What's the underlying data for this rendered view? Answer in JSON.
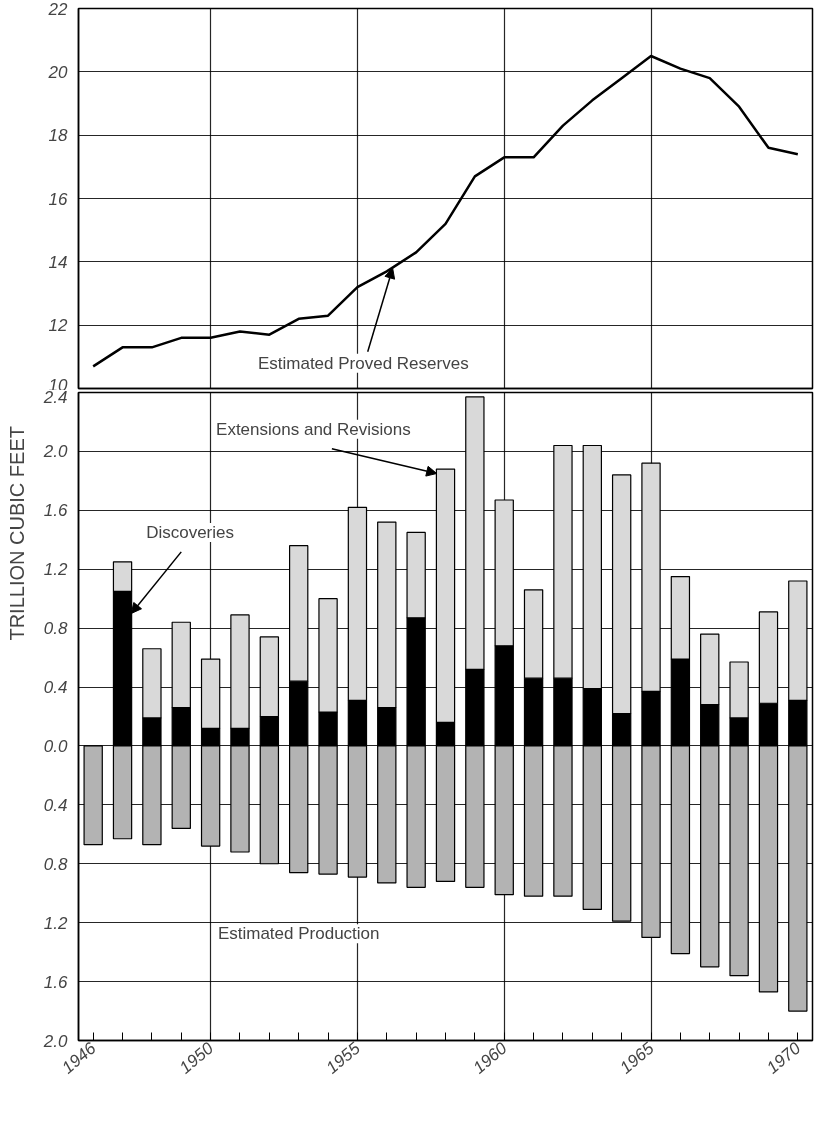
{
  "chart_data": [
    {
      "type": "line",
      "ylabel": "TRILLION CUBIC FEET",
      "tick_labels": "y",
      "grid": true,
      "x": [
        1946,
        1947,
        1948,
        1949,
        1950,
        1951,
        1952,
        1953,
        1954,
        1955,
        1956,
        1957,
        1958,
        1959,
        1960,
        1961,
        1962,
        1963,
        1964,
        1965,
        1966,
        1967,
        1968,
        1969,
        1970
      ],
      "series": [
        {
          "color": "#000000",
          "values": [
            10.7,
            11.3,
            11.3,
            11.6,
            11.6,
            11.8,
            11.7,
            12.2,
            12.3,
            13.2,
            13.7,
            14.3,
            15.2,
            16.7,
            17.3,
            17.3,
            18.3,
            19.1,
            19.8,
            20.5,
            20.1,
            19.8,
            18.9,
            17.6,
            17.4
          ]
        }
      ],
      "xlim": [
        1945.5,
        1970.5
      ],
      "xticks": [
        1950,
        1955,
        1960,
        1965
      ],
      "ylim": [
        10,
        22
      ],
      "yticks": [
        10,
        12,
        14,
        16,
        18,
        20,
        22
      ],
      "annotations": [
        {
          "text": "Estimated Proved Reserves",
          "x": 1956.2,
          "y": 13.8
        }
      ]
    },
    {
      "type": "bar",
      "stacked": true,
      "grid": true,
      "x": [
        1946,
        1947,
        1948,
        1949,
        1950,
        1951,
        1952,
        1953,
        1954,
        1955,
        1956,
        1957,
        1958,
        1959,
        1960,
        1961,
        1962,
        1963,
        1964,
        1965,
        1966,
        1967,
        1968,
        1969,
        1970
      ],
      "series": [
        {
          "color": "#000000",
          "values": [
            null,
            1.05,
            0.19,
            0.26,
            0.12,
            0.12,
            0.2,
            0.44,
            0.23,
            0.31,
            0.26,
            0.87,
            0.16,
            0.52,
            0.68,
            0.46,
            0.46,
            0.39,
            0.22,
            0.37,
            0.59,
            0.28,
            0.19,
            0.29,
            0.31
          ]
        },
        {
          "color": "#d9d9d9",
          "values": [
            null,
            0.2,
            0.47,
            0.58,
            0.47,
            0.77,
            0.54,
            0.92,
            0.77,
            1.31,
            1.26,
            0.58,
            1.72,
            1.85,
            0.99,
            0.6,
            1.58,
            1.65,
            1.62,
            1.55,
            0.56,
            0.48,
            0.38,
            0.62,
            0.81
          ]
        },
        {
          "color": "#b3b3b3",
          "values": [
            -0.67,
            -0.63,
            -0.67,
            -0.56,
            -0.68,
            -0.72,
            -0.8,
            -0.86,
            -0.87,
            -0.89,
            -0.93,
            -0.96,
            -0.92,
            -0.96,
            -1.01,
            -1.02,
            -1.02,
            -1.11,
            -1.19,
            -1.3,
            -1.41,
            -1.5,
            -1.56,
            -1.67,
            -1.8
          ]
        }
      ],
      "xlim": [
        1945.5,
        1970.5
      ],
      "xticks": [
        1946,
        {
          "value": 1947,
          "label": null
        },
        {
          "value": 1948,
          "label": null
        },
        {
          "value": 1949,
          "label": null
        },
        1950,
        {
          "value": 1951,
          "label": null
        },
        {
          "value": 1952,
          "label": null
        },
        {
          "value": 1953,
          "label": null
        },
        {
          "value": 1954,
          "label": null
        },
        1955,
        {
          "value": 1956,
          "label": null
        },
        {
          "value": 1957,
          "label": null
        },
        {
          "value": 1958,
          "label": null
        },
        {
          "value": 1959,
          "label": null
        },
        1960,
        {
          "value": 1961,
          "label": null
        },
        {
          "value": 1962,
          "label": null
        },
        {
          "value": 1963,
          "label": null
        },
        {
          "value": 1964,
          "label": null
        },
        1965,
        {
          "value": 1966,
          "label": null
        },
        {
          "value": 1967,
          "label": null
        },
        {
          "value": 1968,
          "label": null
        },
        {
          "value": 1969,
          "label": null
        },
        1970
      ],
      "ylim": [
        -2.0,
        2.4
      ],
      "yticks": [
        {
          "value": -2.0,
          "label": "2.0"
        },
        {
          "value": -1.6,
          "label": "1.6"
        },
        {
          "value": -1.2,
          "label": "1.2"
        },
        {
          "value": -0.8,
          "label": "0.8"
        },
        {
          "value": -0.4,
          "label": "0.4"
        },
        {
          "value": 0,
          "label": "0.0"
        },
        {
          "value": 0.4,
          "label": "0.4"
        },
        {
          "value": 0.8,
          "label": "0.8"
        },
        {
          "value": 1.2,
          "label": "1.2"
        },
        {
          "value": 1.6,
          "label": "1.6"
        },
        {
          "value": 2.0,
          "label": "2.0"
        },
        {
          "value": 2.4,
          "label": "2.4"
        }
      ],
      "annotations": [
        {
          "text": "Discoveries",
          "x": 1947.3,
          "y": 0.9
        },
        {
          "text": "Extensions and Revisions",
          "x": 1957.7,
          "y": 1.85
        },
        "Estimated Production"
      ]
    }
  ]
}
